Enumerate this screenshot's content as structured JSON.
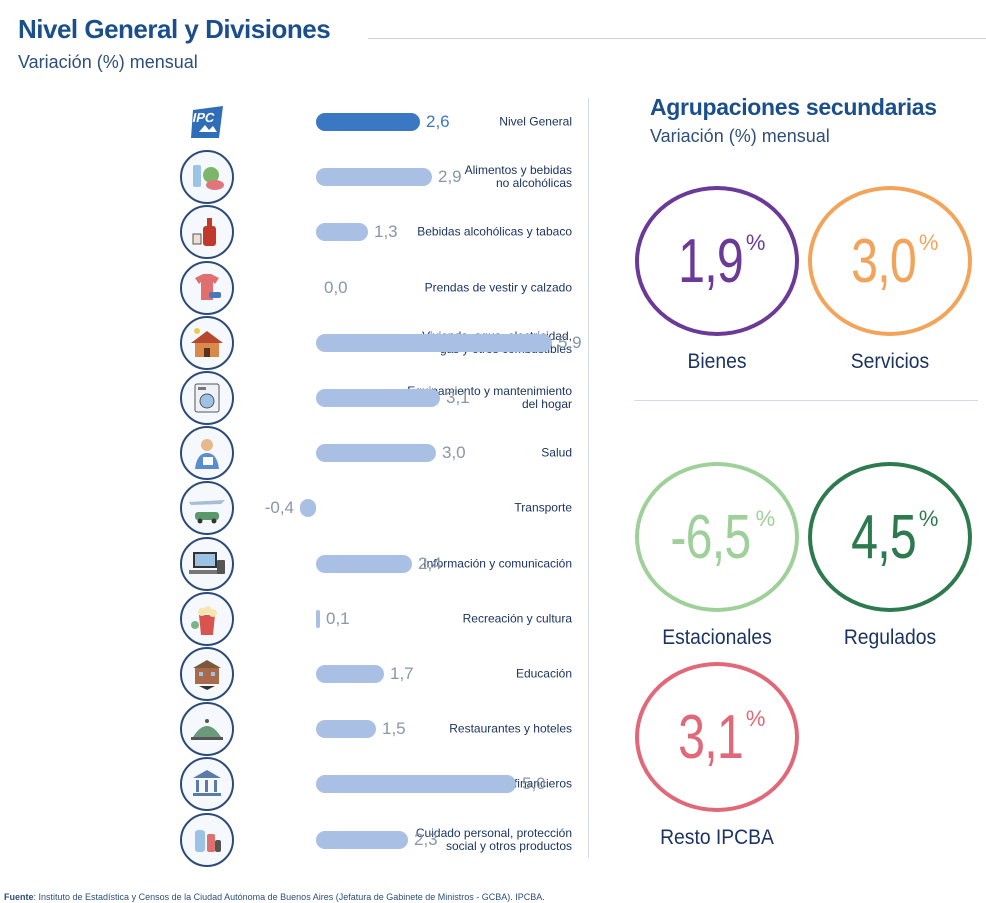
{
  "header": {
    "title": "Nivel General y Divisiones",
    "subtitle": "Variación (%) mensual"
  },
  "chart_data": [
    {
      "type": "bar",
      "orientation": "horizontal",
      "title": "Nivel General y Divisiones",
      "subtitle": "Variación (%) mensual",
      "categories": [
        "Nivel General",
        "Alimentos y bebidas no alcohólicas",
        "Bebidas alcohólicas y tabaco",
        "Prendas de vestir y calzado",
        "Vivienda, agua, electricidad, gas y otros combustibles",
        "Equipamiento y mantenimiento del hogar",
        "Salud",
        "Transporte",
        "Información y comunicación",
        "Recreación y cultura",
        "Educación",
        "Restaurantes y hoteles",
        "Seguros y servicios financieros",
        "Cuidado personal, protección social y otros productos"
      ],
      "label_lines": [
        [
          "Nivel General"
        ],
        [
          "Alimentos y bebidas",
          "no alcohólicas"
        ],
        [
          "Bebidas alcohólicas y tabaco"
        ],
        [
          "Prendas de vestir y calzado"
        ],
        [
          "Vivienda, agua, electricidad,",
          "gas y otros combustibles"
        ],
        [
          "Equipamiento y mantenimiento",
          "del hogar"
        ],
        [
          "Salud"
        ],
        [
          "Transporte"
        ],
        [
          "Información y comunicación"
        ],
        [
          "Recreación y cultura"
        ],
        [
          "Educación"
        ],
        [
          "Restaurantes y hoteles"
        ],
        [
          "Seguros y servicios financieros"
        ],
        [
          "Cuidado personal, protección",
          "social y otros productos"
        ]
      ],
      "values": [
        2.6,
        2.9,
        1.3,
        0.0,
        5.9,
        3.1,
        3.0,
        -0.4,
        2.4,
        0.1,
        1.7,
        1.5,
        5.0,
        2.3
      ],
      "value_labels": [
        "2,6",
        "2,9",
        "1,3",
        "0,0",
        "5,9",
        "3,1",
        "3,0",
        "-0,4",
        "2,4",
        "0,1",
        "1,7",
        "1,5",
        "5,0",
        "2,3"
      ],
      "icons": [
        "ipc-logo-icon",
        "food-icon",
        "wine-bottle-icon",
        "clothing-icon",
        "house-icon",
        "washing-machine-icon",
        "health-worker-icon",
        "transport-icon",
        "computer-icon",
        "popcorn-icon",
        "school-icon",
        "restaurant-cloche-icon",
        "bank-icon",
        "personal-care-icon"
      ],
      "highlight_index": 0,
      "colors": {
        "primary": "#3a78c4",
        "secondary": "#a9bfe4"
      }
    },
    {
      "type": "kpi",
      "title": "Agrupaciones secundarias",
      "subtitle": "Variación (%) mensual",
      "items": [
        {
          "name": "Bienes",
          "value": 1.9,
          "label": "1,9",
          "color": "#6b3a96"
        },
        {
          "name": "Servicios",
          "value": 3.0,
          "label": "3,0",
          "color": "#f2a45a"
        },
        {
          "name": "Estacionales",
          "value": -6.5,
          "label": "-6,5",
          "color": "#9fd09a"
        },
        {
          "name": "Regulados",
          "value": 4.5,
          "label": "4,5",
          "color": "#2d7a4f"
        },
        {
          "name": "Resto IPCBA",
          "value": 3.1,
          "label": "3,1",
          "color": "#e06878"
        }
      ],
      "unit": "%"
    }
  ],
  "secondary": {
    "title": "Agrupaciones secundarias",
    "subtitle": "Variación (%) mensual"
  },
  "footer": {
    "label": "Fuente",
    "text": ": Instituto de Estadística y Censos de la Ciudad Autónoma de Buenos Aires (Jefatura de Gabinete de Ministros - GCBA). IPCBA."
  }
}
